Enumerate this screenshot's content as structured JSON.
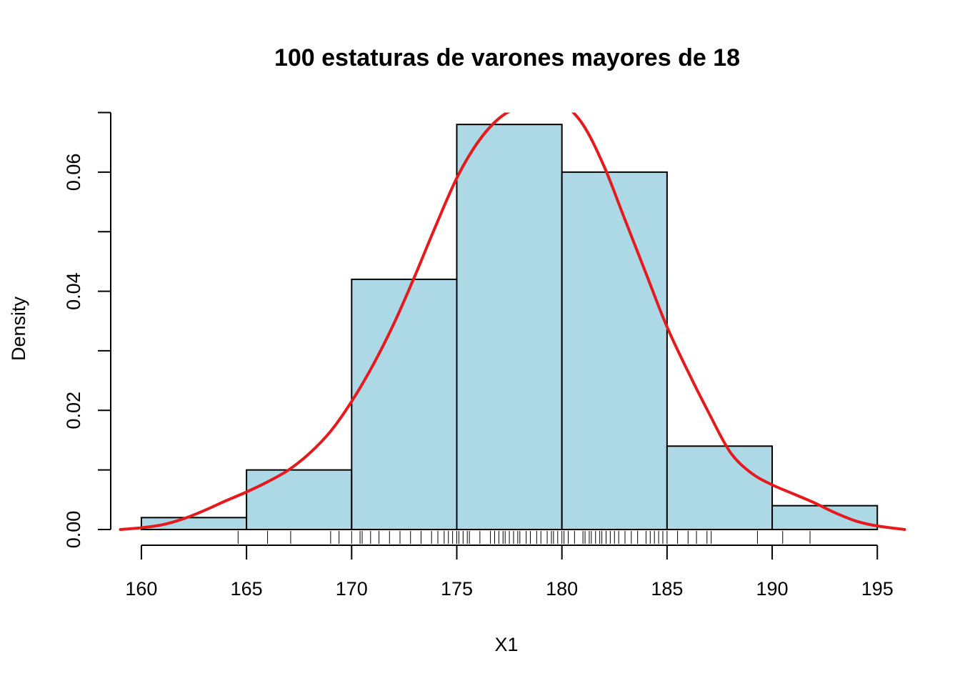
{
  "chart_data": {
    "type": "bar",
    "title": "100 estaturas de varones mayores de 18",
    "xlabel": "X1",
    "ylabel": "Density",
    "xlim": [
      159,
      196.3
    ],
    "ylim": [
      0,
      0.07
    ],
    "x_ticks": [
      160,
      165,
      170,
      175,
      180,
      185,
      190,
      195
    ],
    "x_tick_labels": [
      "160",
      "165",
      "170",
      "175",
      "180",
      "185",
      "190",
      "195"
    ],
    "y_ticks": [
      0,
      0.01,
      0.02,
      0.03,
      0.04,
      0.05,
      0.06,
      0.07
    ],
    "y_tick_labels": [
      "0.00",
      "",
      "0.02",
      "",
      "0.04",
      "",
      "0.06",
      ""
    ],
    "bins": [
      {
        "from": 160,
        "to": 165,
        "density": 0.002
      },
      {
        "from": 165,
        "to": 170,
        "density": 0.01
      },
      {
        "from": 170,
        "to": 175,
        "density": 0.042
      },
      {
        "from": 175,
        "to": 180,
        "density": 0.068
      },
      {
        "from": 180,
        "to": 185,
        "density": 0.06
      },
      {
        "from": 185,
        "to": 190,
        "density": 0.014
      },
      {
        "from": 190,
        "to": 195,
        "density": 0.004
      }
    ],
    "density_curve": {
      "x": [
        159,
        160,
        161,
        162,
        163,
        164,
        165,
        166,
        167,
        168,
        169,
        170,
        171,
        172,
        173,
        174,
        175,
        176,
        177,
        178,
        179,
        180,
        181,
        182,
        183,
        184,
        185,
        186,
        187,
        188,
        189,
        190,
        191,
        192,
        193,
        194,
        195,
        196.3
      ],
      "y": [
        0.0,
        0.0003,
        0.0008,
        0.0018,
        0.0032,
        0.0048,
        0.0063,
        0.008,
        0.01,
        0.0128,
        0.0165,
        0.0215,
        0.0275,
        0.0345,
        0.0425,
        0.051,
        0.059,
        0.065,
        0.069,
        0.071,
        0.072,
        0.0715,
        0.068,
        0.061,
        0.052,
        0.043,
        0.034,
        0.0265,
        0.0195,
        0.013,
        0.0095,
        0.0075,
        0.006,
        0.0045,
        0.0028,
        0.0014,
        0.0006,
        0.0
      ]
    },
    "rug": [
      164.6,
      166.0,
      167.1,
      169.0,
      169.4,
      170.0,
      170.4,
      170.5,
      170.9,
      171.3,
      171.8,
      172.3,
      172.8,
      173.3,
      173.8,
      174.1,
      174.4,
      174.6,
      174.8,
      175.0,
      175.1,
      175.3,
      175.5,
      175.6,
      176.1,
      176.6,
      176.8,
      177.0,
      177.2,
      177.3,
      177.5,
      177.7,
      177.9,
      178.0,
      178.3,
      178.5,
      178.8,
      179.0,
      179.3,
      179.5,
      179.6,
      179.8,
      180.0,
      180.1,
      180.3,
      180.6,
      181.0,
      181.1,
      181.3,
      181.4,
      181.6,
      181.8,
      181.9,
      182.1,
      182.3,
      182.5,
      182.7,
      183.0,
      183.3,
      183.6,
      184.0,
      184.2,
      184.4,
      184.6,
      184.8,
      185.0,
      185.5,
      186.0,
      186.4,
      186.9,
      187.1,
      189.3,
      190.5,
      191.8
    ],
    "colors": {
      "bar_fill": "#ADD8E6",
      "bar_stroke": "#000000",
      "curve": "#E41A1C",
      "background": "#FFFFFF"
    },
    "grid": false,
    "legend": "none"
  }
}
